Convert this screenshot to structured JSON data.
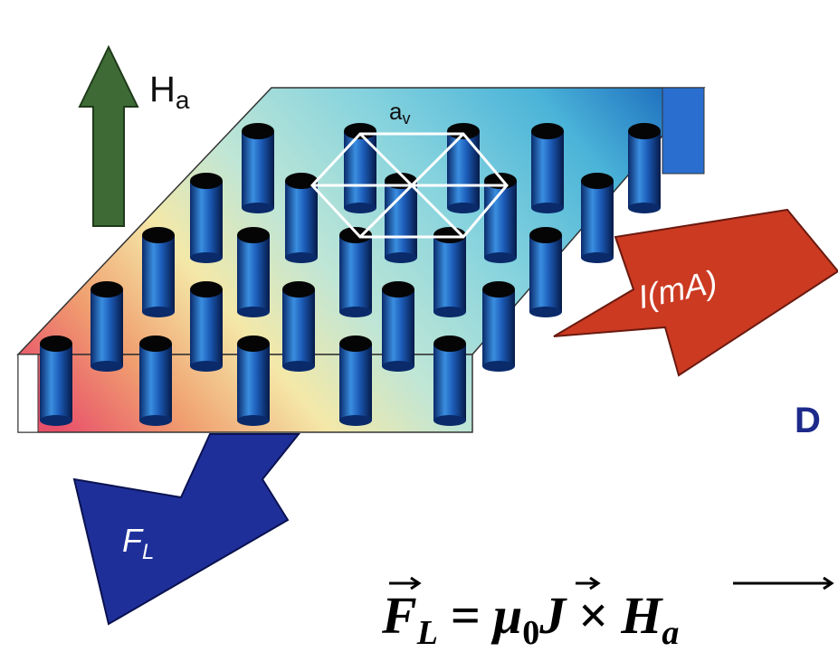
{
  "field_label": {
    "base": "H",
    "sub": "a"
  },
  "spacing_label": {
    "base": "a",
    "sub": "v"
  },
  "current_label": "I(mA)",
  "force_label": {
    "base": "F",
    "sub": "L"
  },
  "cut_text": "D",
  "equation": {
    "lhs_base": "F",
    "lhs_sub": "L",
    "equals": "=",
    "mu": "μ",
    "mu_sub": "0",
    "j": "J",
    "times": "×",
    "rhs_base": "H",
    "rhs_sub": "a"
  }
}
